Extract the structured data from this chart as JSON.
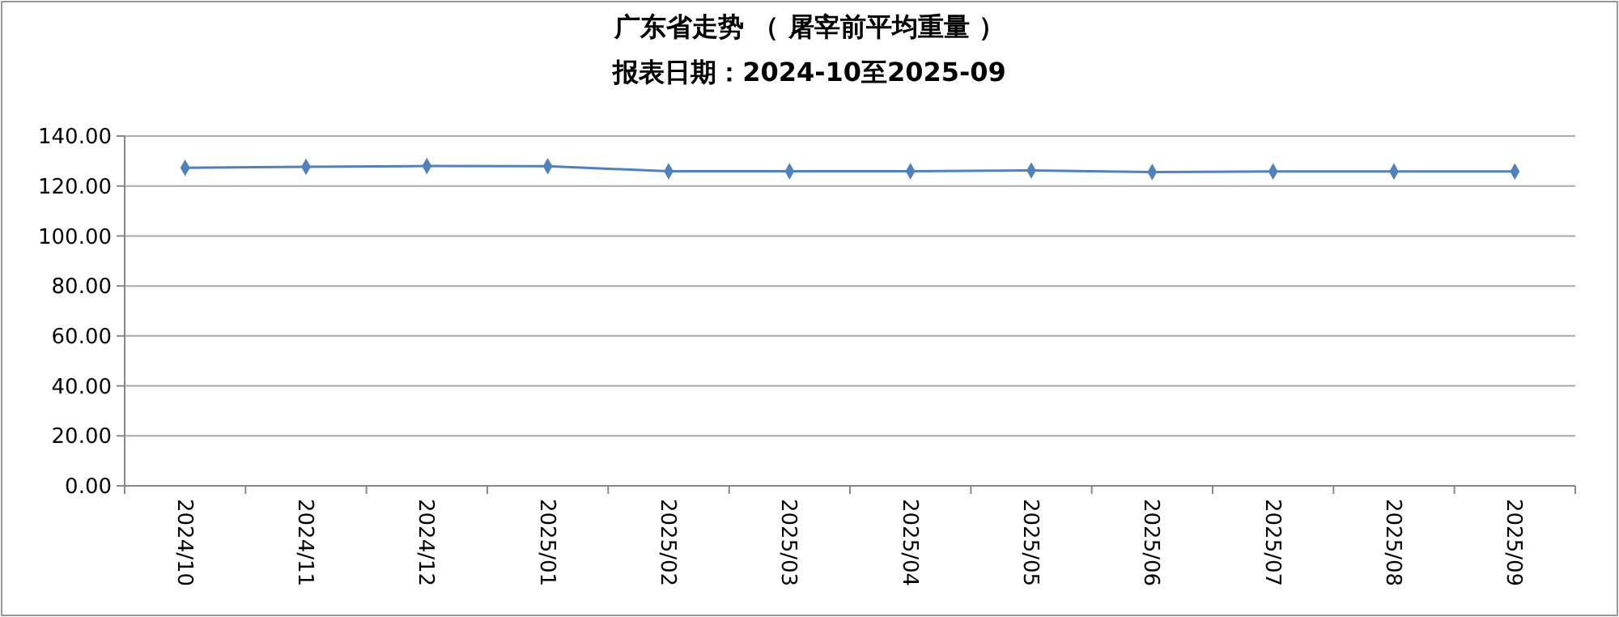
{
  "chart_data": {
    "type": "line",
    "title": "广东省走势 （ 屠宰前平均重量 ）",
    "subtitle": "报表日期：2024-10至2025-09",
    "categories": [
      "2024/10",
      "2024/11",
      "2024/12",
      "2025/01",
      "2025/02",
      "2025/03",
      "2025/04",
      "2025/05",
      "2025/06",
      "2025/07",
      "2025/08",
      "2025/09"
    ],
    "series": [
      {
        "color": "#4f81bd",
        "values": [
          127.3,
          127.7,
          128.0,
          127.9,
          125.9,
          125.9,
          125.9,
          126.2,
          125.6,
          125.8,
          125.8,
          125.8
        ]
      }
    ],
    "ylim": [
      0,
      140
    ],
    "yticks": [
      {
        "value": 0,
        "label": "0.00"
      },
      {
        "value": 20,
        "label": "20.00"
      },
      {
        "value": 40,
        "label": "40.00"
      },
      {
        "value": 60,
        "label": "60.00"
      },
      {
        "value": 80,
        "label": "80.00"
      },
      {
        "value": 100,
        "label": "100.00"
      },
      {
        "value": 120,
        "label": "120.00"
      },
      {
        "value": 140,
        "label": "140.00"
      }
    ],
    "grid": "y",
    "marker": "diamond"
  }
}
